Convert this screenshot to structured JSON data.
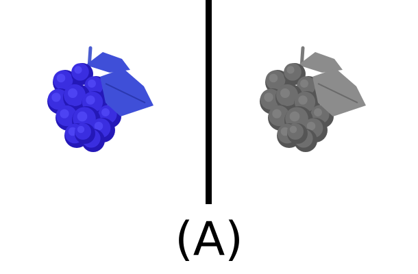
{
  "figure": {
    "caption": "(A)",
    "left_panel": {
      "icon": "grape-bunch-icon",
      "style": "color",
      "colors": {
        "berry": "#3a2ee0",
        "berry_shadow": "#2418b8",
        "berry_highlight": "#5a52ff",
        "leaf": "#3f4fd8",
        "leaf_dark": "#2b38b0",
        "stem": "#4a5cd0"
      }
    },
    "right_panel": {
      "icon": "grape-bunch-icon",
      "style": "grayscale",
      "colors": {
        "berry": "#6e6e6e",
        "berry_shadow": "#555555",
        "berry_highlight": "#8a8a8a",
        "leaf": "#8c8c8c",
        "leaf_dark": "#6a6a6a",
        "stem": "#7a7a7a"
      }
    },
    "divider_color": "#000000"
  }
}
